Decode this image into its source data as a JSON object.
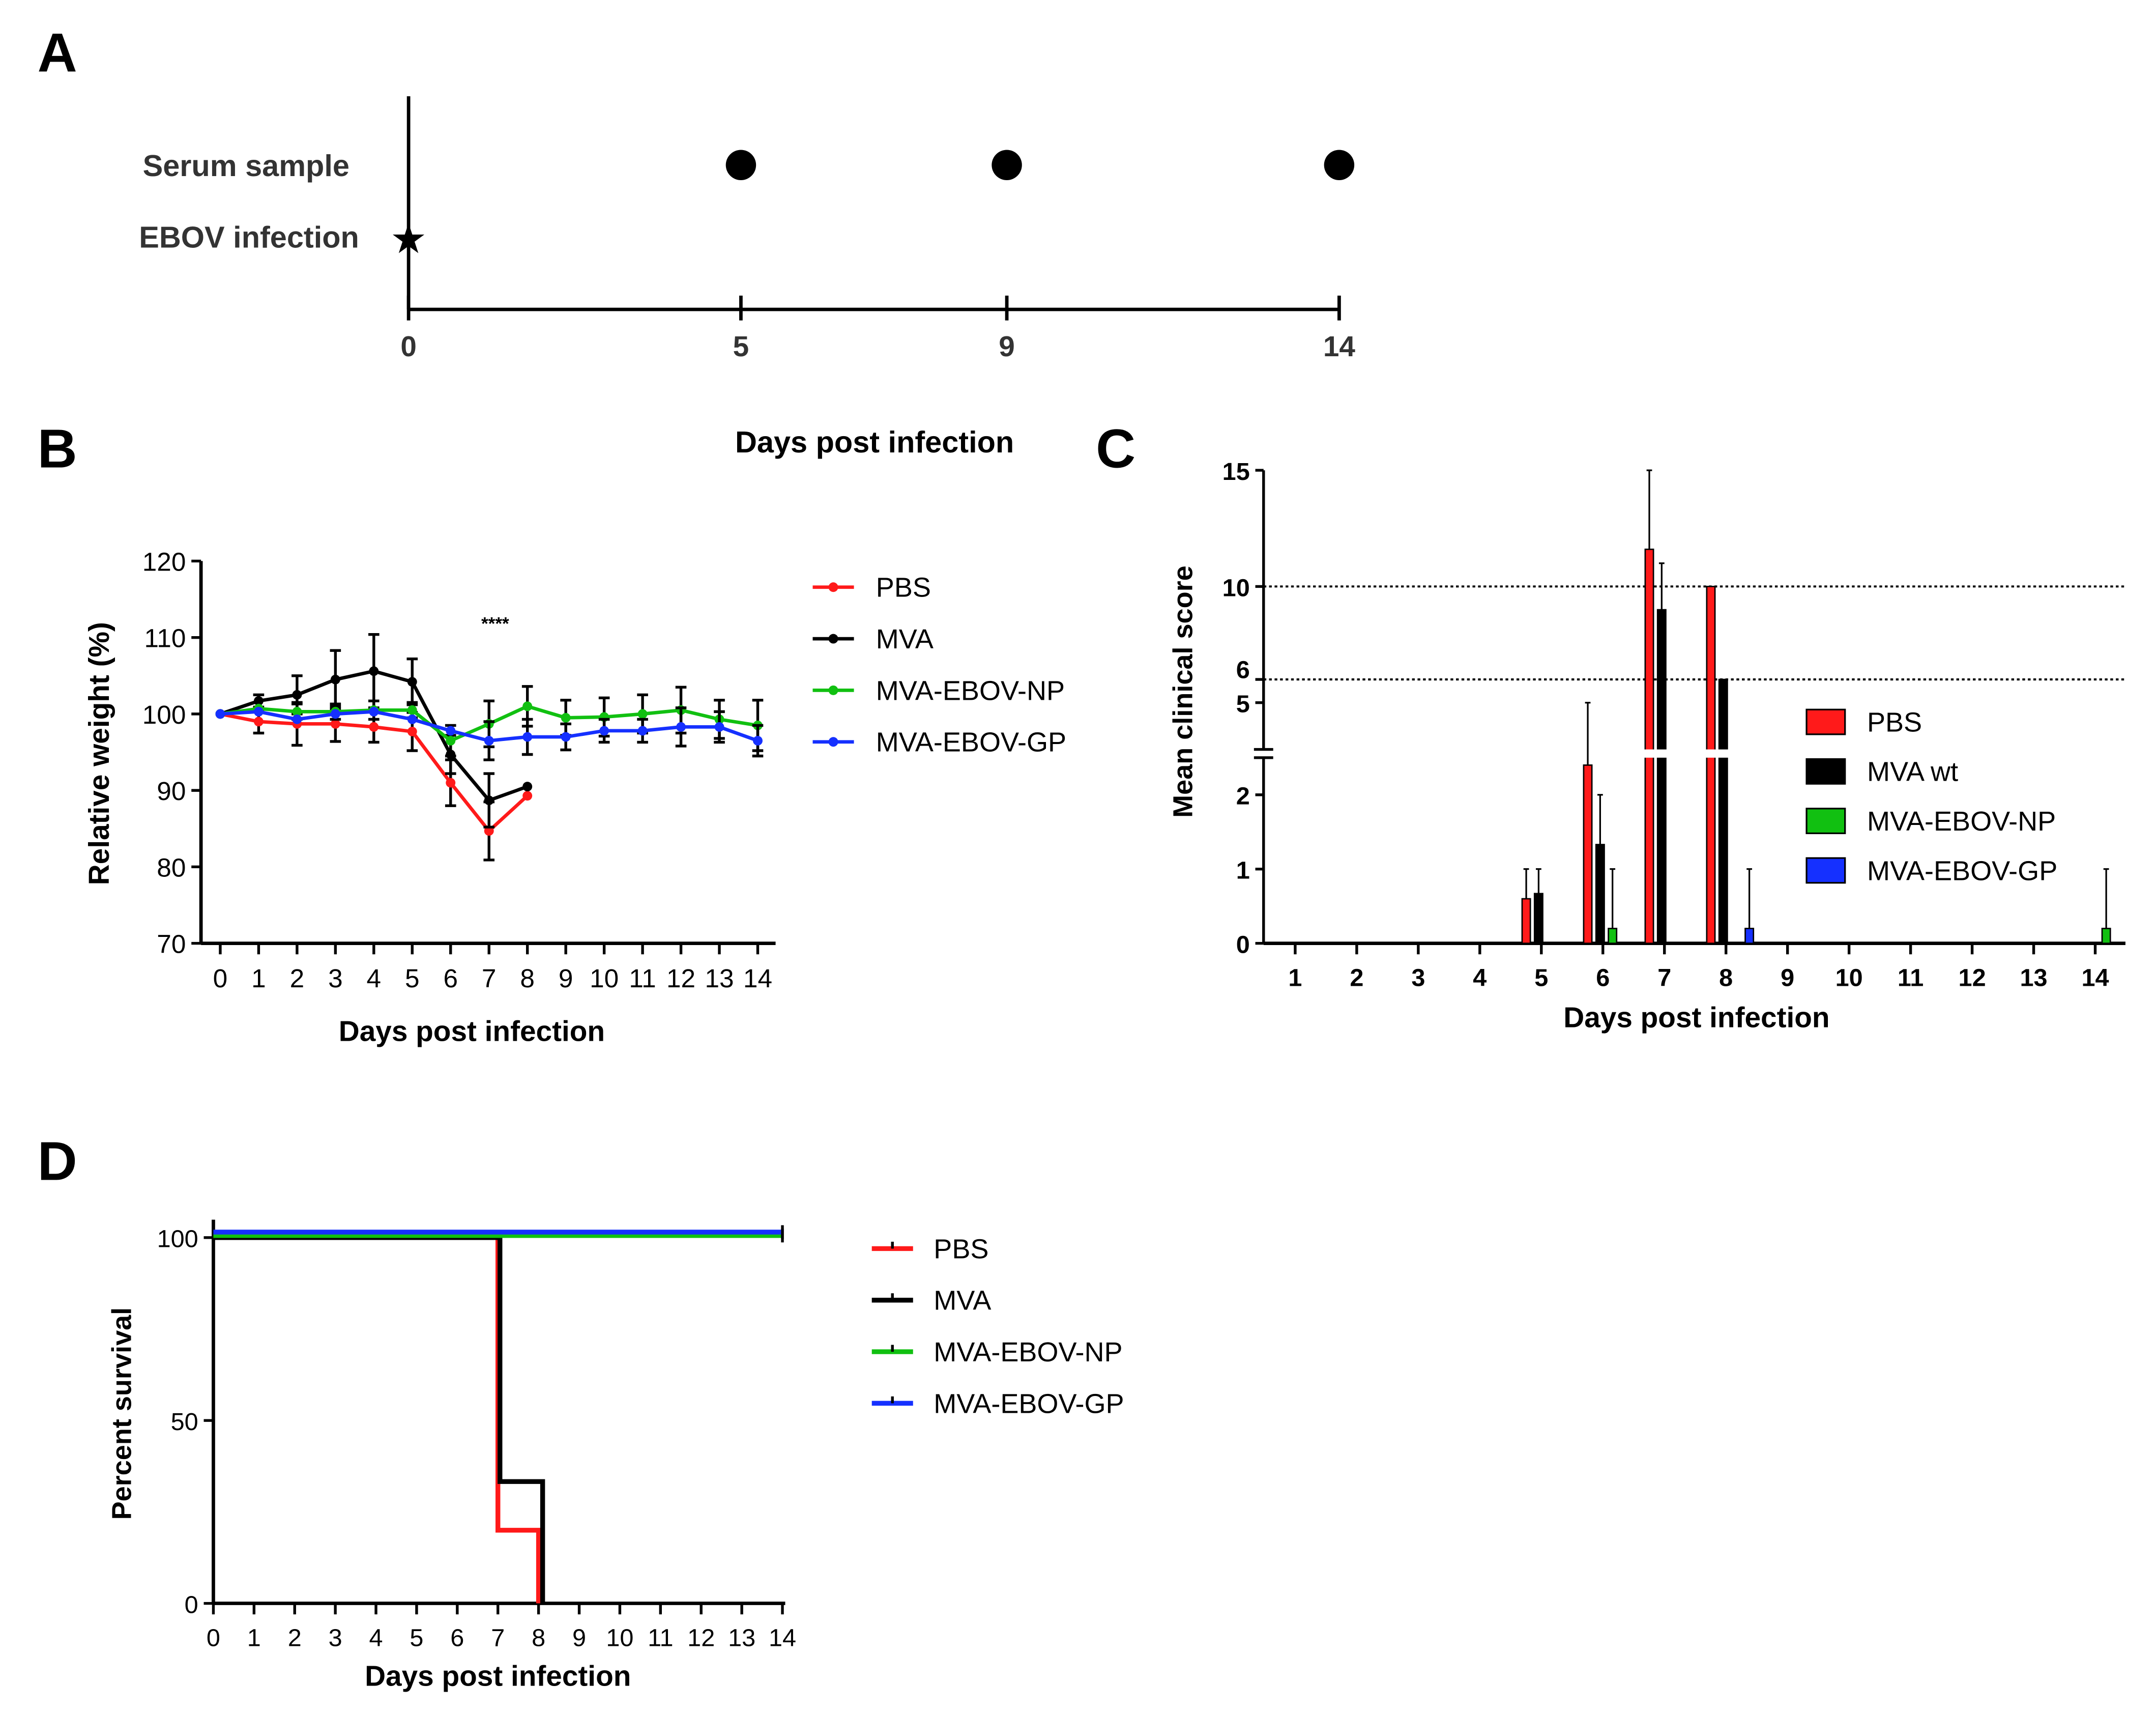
{
  "panel_labels": [
    "A",
    "B",
    "C",
    "D"
  ],
  "colors": {
    "PBS": "#ff1a1a",
    "MVA": "#000000",
    "NP": "#11c011",
    "GP": "#1530ff"
  },
  "chart_data": [
    {
      "panel": "A",
      "type": "timeline",
      "rows": [
        "Serum sample",
        "EBOV infection"
      ],
      "serum_days": [
        5,
        9,
        14
      ],
      "infection_day": 0,
      "ticks": [
        "0",
        "5",
        "9",
        "14"
      ],
      "xlabel": "Days post infection",
      "xlim": [
        0,
        14
      ]
    },
    {
      "panel": "B",
      "type": "line",
      "xlabel": "Days post infection",
      "ylabel": "Relative weight (%)",
      "ylim": [
        70,
        120
      ],
      "yticks": [
        "70",
        "80",
        "90",
        "100",
        "110",
        "120"
      ],
      "xticks": [
        "0",
        "1",
        "2",
        "3",
        "4",
        "5",
        "6",
        "7",
        "8",
        "9",
        "10",
        "11",
        "12",
        "13",
        "14"
      ],
      "annotation": {
        "text": "****",
        "x": 7
      },
      "legend": "top-right",
      "series": [
        {
          "name": "PBS",
          "color": "#ff1a1a",
          "x": [
            0,
            1,
            2,
            3,
            4,
            5,
            6,
            7,
            8
          ],
          "y": [
            100,
            99,
            98.7,
            98.7,
            98.3,
            97.7,
            91,
            84.7,
            89.3
          ],
          "err": [
            0,
            1.5,
            2.8,
            2.3,
            2,
            2.5,
            3,
            3.8,
            0
          ]
        },
        {
          "name": "MVA",
          "color": "#000000",
          "x": [
            0,
            1,
            2,
            3,
            4,
            5,
            6,
            7,
            8
          ],
          "y": [
            100,
            101.7,
            102.5,
            104.5,
            105.6,
            104.2,
            94.7,
            88.7,
            90.5
          ],
          "err": [
            0,
            0.8,
            2.5,
            3.8,
            4.8,
            3,
            2.5,
            3.5,
            0
          ]
        },
        {
          "name": "MVA-EBOV-NP",
          "color": "#11c011",
          "x": [
            0,
            1,
            2,
            3,
            4,
            5,
            6,
            7,
            8,
            9,
            10,
            11,
            12,
            13,
            14
          ],
          "y": [
            100,
            100.7,
            100.3,
            100.3,
            100.5,
            100.5,
            96.5,
            98.7,
            101,
            99.5,
            99.6,
            100,
            100.5,
            99.3,
            98.5
          ],
          "err": [
            0,
            0,
            1,
            1,
            1.2,
            1,
            2,
            3,
            2.6,
            2.3,
            2.5,
            2.5,
            3,
            2.5,
            3.3
          ]
        },
        {
          "name": "MVA-EBOV-GP",
          "color": "#1530ff",
          "x": [
            0,
            1,
            2,
            3,
            4,
            5,
            6,
            7,
            8,
            9,
            10,
            11,
            12,
            13,
            14
          ],
          "y": [
            100,
            100.3,
            99.3,
            100,
            100.3,
            99.3,
            97.8,
            96.5,
            97,
            97,
            97.8,
            97.8,
            98.3,
            98.3,
            96.5
          ],
          "err": [
            0,
            0,
            0,
            0,
            0,
            0,
            0,
            2.5,
            2.3,
            1.7,
            1.5,
            1.5,
            2.5,
            2,
            2
          ]
        }
      ]
    },
    {
      "panel": "C",
      "type": "bar",
      "xlabel": "Days post infection",
      "ylabel": "Mean clinical score",
      "yticks": [
        "0",
        "1",
        "2",
        "5",
        "6",
        "10",
        "15"
      ],
      "axis_break": [
        2.5,
        4.5
      ],
      "reference_lines": [
        10,
        6
      ],
      "xticks": [
        "1",
        "2",
        "3",
        "4",
        "5",
        "6",
        "7",
        "8",
        "9",
        "10",
        "11",
        "12",
        "13",
        "14"
      ],
      "legend": "right",
      "series": [
        {
          "name": "PBS",
          "color": "#ff1a1a",
          "bars": [
            {
              "day": 5,
              "value": 0.6,
              "err_top": 1
            },
            {
              "day": 6,
              "value": 2.4,
              "err_top": 5
            },
            {
              "day": 7,
              "value": 11.6,
              "err_top": 15
            },
            {
              "day": 8,
              "value": 10,
              "err_top": 10
            }
          ]
        },
        {
          "name": "MVA wt",
          "color": "#000000",
          "bars": [
            {
              "day": 5,
              "value": 0.67,
              "err_top": 1
            },
            {
              "day": 6,
              "value": 1.33,
              "err_top": 2
            },
            {
              "day": 7,
              "value": 9,
              "err_top": 11
            },
            {
              "day": 8,
              "value": 6,
              "err_top": 6
            }
          ]
        },
        {
          "name": "MVA-EBOV-NP",
          "color": "#11c011",
          "bars": [
            {
              "day": 6,
              "value": 0.2,
              "err_top": 1
            },
            {
              "day": 14,
              "value": 0.2,
              "err_top": 1
            }
          ]
        },
        {
          "name": "MVA-EBOV-GP",
          "color": "#1530ff",
          "bars": [
            {
              "day": 8,
              "value": 0.2,
              "err_top": 1
            }
          ]
        }
      ]
    },
    {
      "panel": "D",
      "type": "line",
      "subtype": "survival",
      "xlabel": "Days post infection",
      "ylabel": "Percent survival",
      "ylim": [
        0,
        100
      ],
      "yticks": [
        "0",
        "50",
        "100"
      ],
      "xticks": [
        "0",
        "1",
        "2",
        "3",
        "4",
        "5",
        "6",
        "7",
        "8",
        "9",
        "10",
        "11",
        "12",
        "13",
        "14"
      ],
      "legend": "right",
      "series": [
        {
          "name": "PBS",
          "color": "#ff1a1a",
          "steps": [
            [
              0,
              100
            ],
            [
              7,
              20
            ],
            [
              8,
              0
            ]
          ],
          "end": 8
        },
        {
          "name": "MVA",
          "color": "#000000",
          "steps": [
            [
              0,
              100
            ],
            [
              7.05,
              33.3
            ],
            [
              8.1,
              0
            ]
          ],
          "end": 8.1
        },
        {
          "name": "MVA-EBOV-NP",
          "color": "#11c011",
          "steps": [
            [
              0,
              100
            ]
          ],
          "end": 14
        },
        {
          "name": "MVA-EBOV-GP",
          "color": "#1530ff",
          "steps": [
            [
              0,
              100
            ]
          ],
          "end": 14
        }
      ]
    }
  ]
}
